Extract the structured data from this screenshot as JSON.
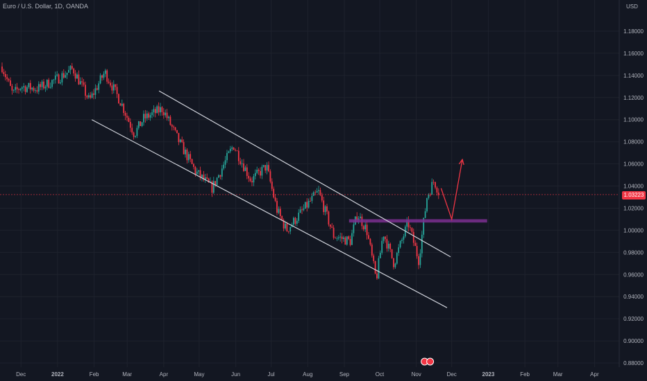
{
  "header": {
    "title": "Euro / U.S. Dollar, 1D, OANDA",
    "currency": "USD"
  },
  "last_price": "1.03223",
  "colors": {
    "background": "#131722",
    "grid": "#1e222d",
    "up": "#26a69a",
    "down": "#f23645",
    "channel": "#d1d4dc",
    "zone": "#7b2f8f",
    "arrow": "#f23645",
    "text": "#b2b5be"
  },
  "chart_data": {
    "type": "candlestick",
    "title": "Euro / U.S. Dollar, 1D, OANDA",
    "ylabel": "USD",
    "ylim": [
      0.875,
      1.195
    ],
    "y_ticks": [
      "1.18000",
      "1.16000",
      "1.14000",
      "1.12000",
      "1.10000",
      "1.08000",
      "1.06000",
      "1.04000",
      "1.02000",
      "1.00000",
      "0.98000",
      "0.96000",
      "0.94000",
      "0.92000",
      "0.90000",
      "0.88000"
    ],
    "x_ticks": [
      "Dec",
      "2022",
      "Feb",
      "Mar",
      "Apr",
      "May",
      "Jun",
      "Jul",
      "Aug",
      "Sep",
      "Oct",
      "Nov",
      "Dec",
      "2023",
      "Feb",
      "Mar",
      "Apr"
    ],
    "grid": true,
    "trend": {
      "dates": [
        "2021-11-15",
        "2021-11-24",
        "2021-12-01",
        "2021-12-15",
        "2022-01-01",
        "2022-01-14",
        "2022-01-28",
        "2022-02-10",
        "2022-02-24",
        "2022-03-07",
        "2022-03-15",
        "2022-03-31",
        "2022-04-14",
        "2022-04-28",
        "2022-05-12",
        "2022-05-30",
        "2022-06-14",
        "2022-06-27",
        "2022-07-06",
        "2022-07-14",
        "2022-08-10",
        "2022-08-23",
        "2022-09-06",
        "2022-09-12",
        "2022-09-20",
        "2022-09-28",
        "2022-10-04",
        "2022-10-13",
        "2022-10-25",
        "2022-11-03",
        "2022-11-10",
        "2022-11-16",
        "2022-11-21"
      ],
      "values": [
        1.148,
        1.123,
        1.13,
        1.128,
        1.137,
        1.146,
        1.117,
        1.143,
        1.115,
        1.087,
        1.101,
        1.11,
        1.08,
        1.053,
        1.038,
        1.077,
        1.045,
        1.058,
        1.018,
        1.0,
        1.035,
        0.995,
        0.99,
        1.015,
        1.0,
        0.955,
        0.998,
        0.97,
        1.007,
        0.973,
        1.03,
        1.045,
        1.032
      ]
    },
    "channel_upper": {
      "dates": [
        "2022-03-28",
        "2022-11-30"
      ],
      "values": [
        1.126,
        0.976
      ]
    },
    "channel_lower": {
      "dates": [
        "2022-01-30",
        "2022-11-27"
      ],
      "values": [
        1.1,
        0.93
      ]
    },
    "horizontal_zone": {
      "dates": [
        "2022-09-05",
        "2022-12-31"
      ],
      "values": [
        1.007,
        1.01
      ]
    },
    "last_price_line": 1.03223,
    "projection_arrow": {
      "dates": [
        "2022-11-22",
        "2022-12-01",
        "2022-12-10"
      ],
      "values": [
        1.038,
        1.01,
        1.064
      ]
    }
  }
}
